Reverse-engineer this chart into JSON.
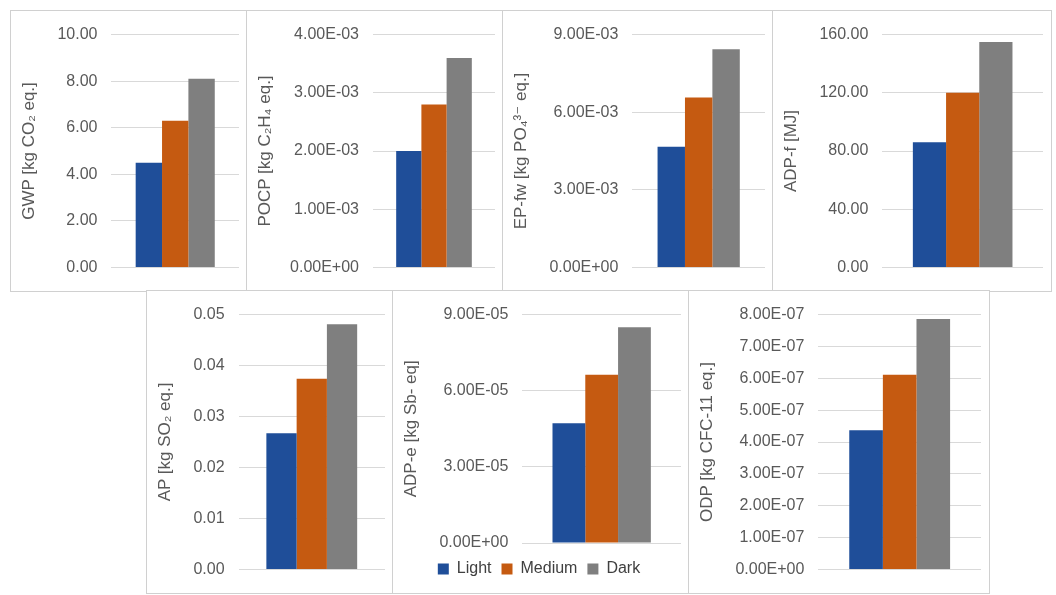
{
  "chart_data": [
    {
      "type": "bar",
      "ylabel": "GWP [kg CO₂ eq.]",
      "categories": [
        null
      ],
      "grid": "y",
      "legend": false,
      "tick_labels": "y",
      "ylim": [
        0,
        10
      ],
      "yticks": [
        {
          "value": 0,
          "label": "0.00"
        },
        {
          "value": 2,
          "label": "2.00"
        },
        {
          "value": 4,
          "label": "4.00"
        },
        {
          "value": 6,
          "label": "6.00"
        },
        {
          "value": 8,
          "label": "8.00"
        },
        {
          "value": 10,
          "label": "10.00"
        }
      ],
      "series": [
        {
          "color": "#1f4e99",
          "values": [
            4.5
          ]
        },
        {
          "color": "#c55a11",
          "values": [
            6.3
          ]
        },
        {
          "color": "#7f7f7f",
          "values": [
            8.1
          ]
        }
      ]
    },
    {
      "type": "bar",
      "ylabel": "POCP [kg C₂H₄ eq.]",
      "categories": [
        null
      ],
      "grid": "y",
      "legend": false,
      "tick_labels": "y",
      "ylim": [
        0,
        0.004
      ],
      "yticks": [
        {
          "value": 0,
          "label": "0.00E+00"
        },
        {
          "value": 0.001,
          "label": "1.00E-03"
        },
        {
          "value": 0.002,
          "label": "2.00E-03"
        },
        {
          "value": 0.003,
          "label": "3.00E-03"
        },
        {
          "value": 0.004,
          "label": "4.00E-03"
        }
      ],
      "series": [
        {
          "color": "#1f4e99",
          "values": [
            0.002
          ]
        },
        {
          "color": "#c55a11",
          "values": [
            0.0028
          ]
        },
        {
          "color": "#7f7f7f",
          "values": [
            0.0036
          ]
        }
      ]
    },
    {
      "type": "bar",
      "ylabel": "EP-fw [kg PO₄³⁻ eq.]",
      "categories": [
        null
      ],
      "grid": "y",
      "legend": false,
      "tick_labels": "y",
      "ylim": [
        0,
        0.009
      ],
      "yticks": [
        {
          "value": 0,
          "label": "0.00E+00"
        },
        {
          "value": 0.003,
          "label": "3.00E-03"
        },
        {
          "value": 0.006,
          "label": "6.00E-03"
        },
        {
          "value": 0.009,
          "label": "9.00E-03"
        }
      ],
      "series": [
        {
          "color": "#1f4e99",
          "values": [
            0.00466
          ]
        },
        {
          "color": "#c55a11",
          "values": [
            0.00657
          ]
        },
        {
          "color": "#7f7f7f",
          "values": [
            0.00843
          ]
        }
      ]
    },
    {
      "type": "bar",
      "ylabel": "ADP-f [MJ]",
      "categories": [
        null
      ],
      "grid": "y",
      "legend": false,
      "tick_labels": "y",
      "ylim": [
        0,
        160
      ],
      "yticks": [
        {
          "value": 0,
          "label": "0.00"
        },
        {
          "value": 40,
          "label": "40.00"
        },
        {
          "value": 80,
          "label": "80.00"
        },
        {
          "value": 120,
          "label": "120.00"
        },
        {
          "value": 160,
          "label": "160.00"
        }
      ],
      "series": [
        {
          "color": "#1f4e99",
          "values": [
            86
          ]
        },
        {
          "color": "#c55a11",
          "values": [
            120
          ]
        },
        {
          "color": "#7f7f7f",
          "values": [
            155
          ]
        }
      ]
    },
    {
      "type": "bar",
      "ylabel": "AP [kg SO₂ eq.]",
      "categories": [
        null
      ],
      "grid": "y",
      "legend": false,
      "tick_labels": "y",
      "ylim": [
        0,
        0.05
      ],
      "yticks": [
        {
          "value": 0,
          "label": "0.00"
        },
        {
          "value": 0.01,
          "label": "0.01"
        },
        {
          "value": 0.02,
          "label": "0.02"
        },
        {
          "value": 0.03,
          "label": "0.03"
        },
        {
          "value": 0.04,
          "label": "0.04"
        },
        {
          "value": 0.05,
          "label": "0.05"
        }
      ],
      "series": [
        {
          "color": "#1f4e99",
          "values": [
            0.0267
          ]
        },
        {
          "color": "#c55a11",
          "values": [
            0.0374
          ]
        },
        {
          "color": "#7f7f7f",
          "values": [
            0.0481
          ]
        }
      ]
    },
    {
      "type": "bar",
      "ylabel": "ADP-e [kg Sb- eq]",
      "categories": [
        null
      ],
      "grid": "y",
      "legend": "bottom",
      "tick_labels": "y",
      "ylim": [
        0,
        9e-05
      ],
      "yticks": [
        {
          "value": 0,
          "label": "0.00E+00"
        },
        {
          "value": 3e-05,
          "label": "3.00E-05"
        },
        {
          "value": 6e-05,
          "label": "6.00E-05"
        },
        {
          "value": 9e-05,
          "label": "9.00E-05"
        }
      ],
      "series": [
        {
          "name": "Light",
          "color": "#1f4e99",
          "values": [
            4.72e-05
          ]
        },
        {
          "name": "Medium",
          "color": "#c55a11",
          "values": [
            6.63e-05
          ]
        },
        {
          "name": "Dark",
          "color": "#7f7f7f",
          "values": [
            8.5e-05
          ]
        }
      ]
    },
    {
      "type": "bar",
      "ylabel": "ODP [kg CFC-11 eq.]",
      "categories": [
        null
      ],
      "grid": "y",
      "legend": false,
      "tick_labels": "y",
      "ylim": [
        0,
        8e-07
      ],
      "yticks": [
        {
          "value": 0,
          "label": "0.00E+00"
        },
        {
          "value": 1e-07,
          "label": "1.00E-07"
        },
        {
          "value": 2e-07,
          "label": "2.00E-07"
        },
        {
          "value": 3e-07,
          "label": "3.00E-07"
        },
        {
          "value": 4e-07,
          "label": "4.00E-07"
        },
        {
          "value": 5e-07,
          "label": "5.00E-07"
        },
        {
          "value": 6e-07,
          "label": "6.00E-07"
        },
        {
          "value": 7e-07,
          "label": "7.00E-07"
        },
        {
          "value": 8e-07,
          "label": "8.00E-07"
        }
      ],
      "series": [
        {
          "color": "#1f4e99",
          "values": [
            4.37e-07
          ]
        },
        {
          "color": "#c55a11",
          "values": [
            6.11e-07
          ]
        },
        {
          "color": "#7f7f7f",
          "values": [
            7.86e-07
          ]
        }
      ]
    }
  ]
}
